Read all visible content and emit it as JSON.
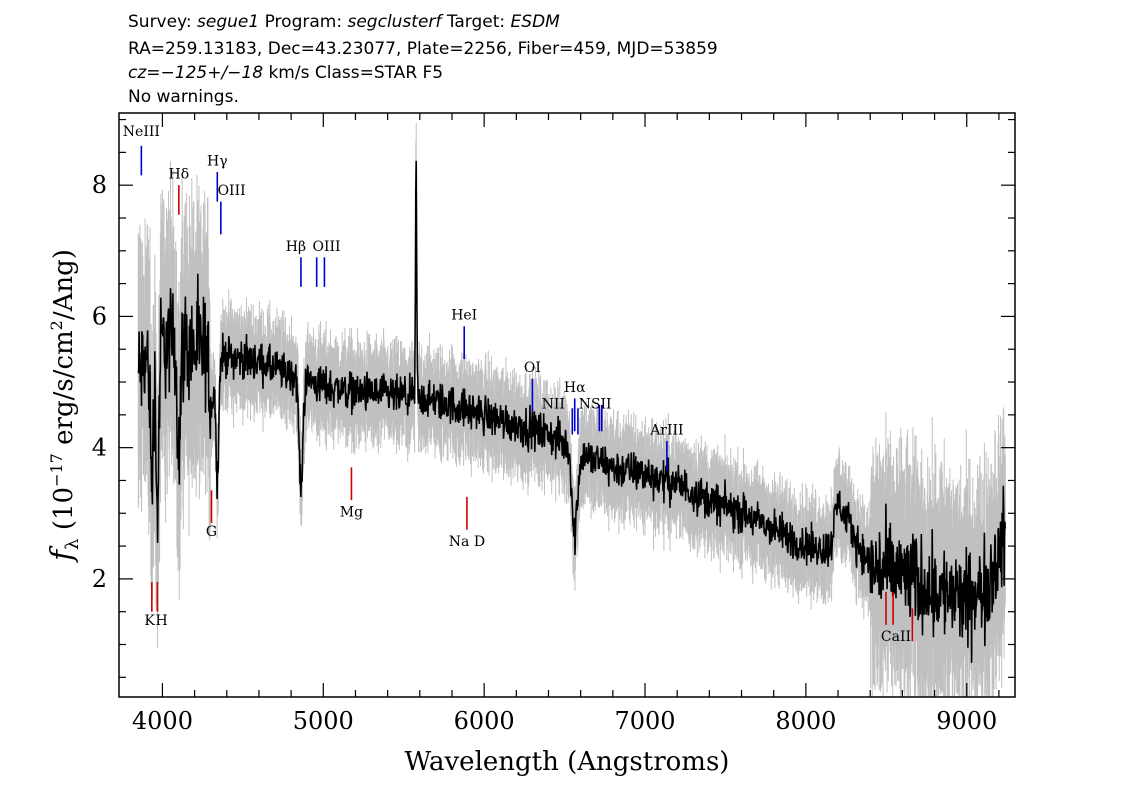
{
  "header": {
    "survey_label": "Survey:",
    "survey": "segue1",
    "program_label": "Program:",
    "program": "segclusterf",
    "target_label": "Target:",
    "target": "ESDM",
    "line2": "RA=259.13183, Dec=43.23077, Plate=2256, Fiber=459, MJD=53859",
    "cz_label": "cz=",
    "cz_value": "−125+/−18",
    "cz_rest": " km/s Class=STAR F5",
    "line4": "No warnings."
  },
  "colors": {
    "flux": "#000000",
    "error": "#c0c0c0",
    "emission": "#0000cc",
    "absorption": "#cc0000"
  },
  "chart_data": {
    "type": "line",
    "title": "",
    "xlabel": "Wavelength (Angstroms)",
    "ylabel_main": "f",
    "ylabel_sub": "λ",
    "ylabel_rest": " (10",
    "ylabel_exp": "−17",
    "ylabel_rest2": " erg/s/cm",
    "ylabel_exp2": "2",
    "ylabel_rest3": "/Ang)",
    "xlim": [
      3730,
      9300
    ],
    "ylim": [
      0.2,
      9.1
    ],
    "xticks": [
      4000,
      5000,
      6000,
      7000,
      8000,
      9000
    ],
    "xtick_labels": [
      "4000",
      "5000",
      "6000",
      "7000",
      "8000",
      "9000"
    ],
    "yticks": [
      2,
      4,
      6,
      8
    ],
    "ytick_labels": [
      "2",
      "4",
      "6",
      "8"
    ],
    "grid": false,
    "continuum": [
      [
        3850,
        5.1
      ],
      [
        3900,
        5.3
      ],
      [
        4000,
        5.6
      ],
      [
        4100,
        5.6
      ],
      [
        4200,
        5.5
      ],
      [
        4400,
        5.4
      ],
      [
        4600,
        5.3
      ],
      [
        4800,
        5.1
      ],
      [
        5000,
        4.95
      ],
      [
        5200,
        4.85
      ],
      [
        5400,
        4.8
      ],
      [
        5600,
        4.75
      ],
      [
        5800,
        4.65
      ],
      [
        6000,
        4.5
      ],
      [
        6200,
        4.35
      ],
      [
        6400,
        4.2
      ],
      [
        6600,
        3.9
      ],
      [
        6800,
        3.7
      ],
      [
        7000,
        3.6
      ],
      [
        7200,
        3.45
      ],
      [
        7400,
        3.2
      ],
      [
        7600,
        3.0
      ],
      [
        7800,
        2.75
      ],
      [
        8000,
        2.5
      ],
      [
        8150,
        2.45
      ],
      [
        8200,
        3.2
      ],
      [
        8300,
        2.65
      ],
      [
        8400,
        2.2
      ],
      [
        8600,
        2.05
      ],
      [
        8800,
        1.85
      ],
      [
        9000,
        1.65
      ],
      [
        9100,
        1.8
      ],
      [
        9240,
        2.6
      ]
    ],
    "features": [
      {
        "x": 3934,
        "depth": 2.0,
        "width": 12
      },
      {
        "x": 3969,
        "depth": 2.5,
        "width": 12
      },
      {
        "x": 4102,
        "depth": 1.6,
        "width": 14
      },
      {
        "x": 4305,
        "depth": 0.8,
        "width": 18
      },
      {
        "x": 4341,
        "depth": 1.8,
        "width": 14
      },
      {
        "x": 4861,
        "depth": 1.7,
        "width": 16
      },
      {
        "x": 5577,
        "depth": -3.6,
        "width": 5
      },
      {
        "x": 6563,
        "depth": 1.3,
        "width": 22
      }
    ],
    "lines": [
      {
        "label": "NeIII",
        "x": 3869,
        "y1": 8.15,
        "y2": 8.6,
        "kind": "emission",
        "lx": 3869,
        "ly": 8.75
      },
      {
        "label": "Hδ",
        "x": 4102,
        "y1": 7.55,
        "y2": 8.0,
        "kind": "absorption",
        "lx": 4102,
        "ly": 8.1
      },
      {
        "label": "Hγ",
        "x": 4341,
        "y1": 7.75,
        "y2": 8.2,
        "kind": "emission",
        "lx": 4341,
        "ly": 8.3
      },
      {
        "label": "OIII",
        "x": 4363,
        "y1": 7.25,
        "y2": 7.75,
        "kind": "emission",
        "lx": 4430,
        "ly": 7.85
      },
      {
        "label": "Hβ",
        "x": 4861,
        "y1": 6.45,
        "y2": 6.9,
        "kind": "emission",
        "lx": 4830,
        "ly": 7.0
      },
      {
        "label": "OIII",
        "x": 4959,
        "y1": 6.45,
        "y2": 6.9,
        "kind": "emission",
        "lx": 5020,
        "ly": 7.0
      },
      {
        "label": "",
        "x": 5007,
        "y1": 6.45,
        "y2": 6.9,
        "kind": "emission",
        "lx": 5007,
        "ly": 7.0
      },
      {
        "label": "Mg",
        "x": 5175,
        "y1": 3.2,
        "y2": 3.7,
        "kind": "absorption",
        "lx": 5175,
        "ly": 2.95
      },
      {
        "label": "HeI",
        "x": 5876,
        "y1": 5.35,
        "y2": 5.85,
        "kind": "emission",
        "lx": 5876,
        "ly": 5.95
      },
      {
        "label": "OI",
        "x": 6300,
        "y1": 4.55,
        "y2": 5.05,
        "kind": "emission",
        "lx": 6300,
        "ly": 5.15
      },
      {
        "label": "NII",
        "x": 6548,
        "y1": 4.2,
        "y2": 4.6,
        "kind": "emission",
        "lx": 6430,
        "ly": 4.6
      },
      {
        "label": "Hα",
        "x": 6563,
        "y1": 4.25,
        "y2": 4.75,
        "kind": "emission",
        "lx": 6563,
        "ly": 4.85
      },
      {
        "label": "",
        "x": 6583,
        "y1": 4.2,
        "y2": 4.6,
        "kind": "emission",
        "lx": 6583,
        "ly": 4.6
      },
      {
        "label": "NSII",
        "x": 6716,
        "y1": 4.25,
        "y2": 4.65,
        "kind": "emission",
        "lx": 6690,
        "ly": 4.6
      },
      {
        "label": "",
        "x": 6731,
        "y1": 4.25,
        "y2": 4.65,
        "kind": "emission",
        "lx": 6731,
        "ly": 4.6
      },
      {
        "label": "ArIII",
        "x": 7136,
        "y1": 3.65,
        "y2": 4.1,
        "kind": "emission",
        "lx": 7136,
        "ly": 4.2
      },
      {
        "label": "K",
        "x": 3934,
        "y1": 1.5,
        "y2": 1.95,
        "kind": "absorption",
        "lx": 3920,
        "ly": 1.3
      },
      {
        "label": "H",
        "x": 3969,
        "y1": 1.5,
        "y2": 1.95,
        "kind": "absorption",
        "lx": 3995,
        "ly": 1.3
      },
      {
        "label": "G",
        "x": 4305,
        "y1": 2.85,
        "y2": 3.35,
        "kind": "absorption",
        "lx": 4305,
        "ly": 2.65
      },
      {
        "label": "Na D",
        "x": 5893,
        "y1": 2.75,
        "y2": 3.25,
        "kind": "absorption",
        "lx": 5893,
        "ly": 2.5
      },
      {
        "label": "CaII",
        "x": 8498,
        "y1": 1.3,
        "y2": 1.8,
        "kind": "absorption",
        "lx": 8560,
        "ly": 1.05
      },
      {
        "label": "",
        "x": 8542,
        "y1": 1.3,
        "y2": 1.8,
        "kind": "absorption",
        "lx": 8542,
        "ly": 1.05
      },
      {
        "label": "",
        "x": 8662,
        "y1": 1.05,
        "y2": 1.55,
        "kind": "absorption",
        "lx": 8662,
        "ly": 1.05
      }
    ]
  }
}
